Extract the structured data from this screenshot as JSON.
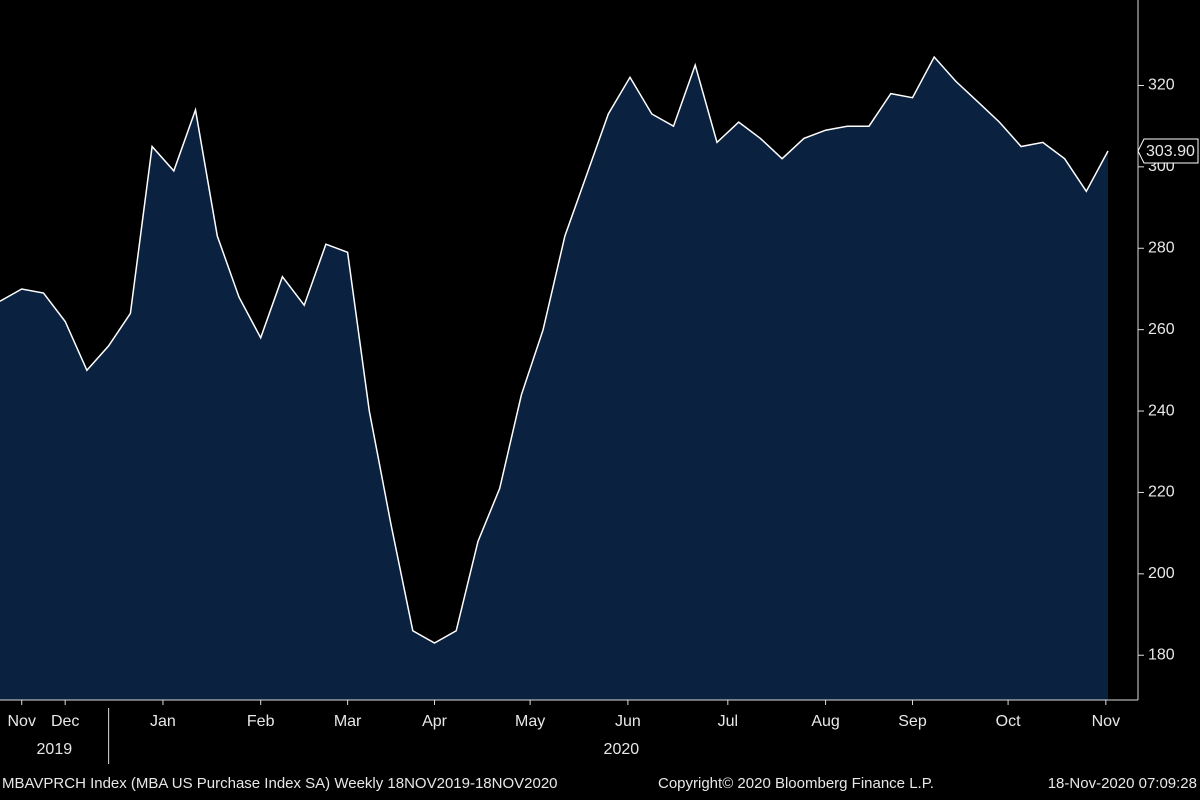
{
  "chart_data": {
    "type": "area",
    "values": [
      267,
      270,
      269,
      262,
      250,
      256,
      264,
      305,
      299,
      314,
      283,
      268,
      258,
      273,
      266,
      281,
      279,
      240,
      212,
      186,
      183,
      186,
      208,
      221,
      244,
      260,
      283,
      298,
      313,
      322,
      313,
      310,
      325,
      306,
      311,
      307,
      302,
      307,
      309,
      310,
      310,
      318,
      317,
      327,
      321,
      316,
      311,
      305,
      306,
      302,
      294,
      303.9
    ],
    "value_labels": [
      null,
      null,
      null,
      null,
      null,
      null,
      null,
      null,
      null,
      null,
      null,
      null,
      null,
      null,
      null,
      null,
      null,
      null,
      null,
      null,
      null,
      null,
      null,
      null,
      null,
      null,
      null,
      null,
      null,
      null,
      null,
      null,
      null,
      null,
      null,
      null,
      null,
      null,
      null,
      null,
      null,
      null,
      null,
      null,
      null,
      null,
      null,
      null,
      null,
      null,
      null,
      "303.90"
    ],
    "color": "#0b2140",
    "line_color": "#ffffff",
    "xlim": [
      0,
      52.38
    ],
    "xticks": [
      {
        "value": 1,
        "label": "Nov"
      },
      {
        "value": 3,
        "label": "Dec"
      },
      {
        "value": 7.5,
        "label": "Jan"
      },
      {
        "value": 12,
        "label": "Feb"
      },
      {
        "value": 16,
        "label": "Mar"
      },
      {
        "value": 20,
        "label": "Apr"
      },
      {
        "value": 24.4,
        "label": "May"
      },
      {
        "value": 28.9,
        "label": "Jun"
      },
      {
        "value": 33.5,
        "label": "Jul"
      },
      {
        "value": 38,
        "label": "Aug"
      },
      {
        "value": 42,
        "label": "Sep"
      },
      {
        "value": 46.4,
        "label": "Oct"
      },
      {
        "value": 50.9,
        "label": "Nov"
      }
    ],
    "year_labels": [
      {
        "value": 2.5,
        "label": "2019"
      },
      {
        "value": 28.6,
        "label": "2020"
      }
    ],
    "year_separators": [
      5
    ],
    "ylim": [
      169,
      341
    ],
    "yticks": [
      180,
      200,
      220,
      240,
      260,
      280,
      300,
      320
    ],
    "footer": {
      "left": "MBAVPRCH Index (MBA US Purchase Index SA)  Weekly 18NOV2019-18NOV2020",
      "center": "Copyright© 2020 Bloomberg Finance L.P.",
      "right": "18-Nov-2020 07:09:28"
    }
  }
}
